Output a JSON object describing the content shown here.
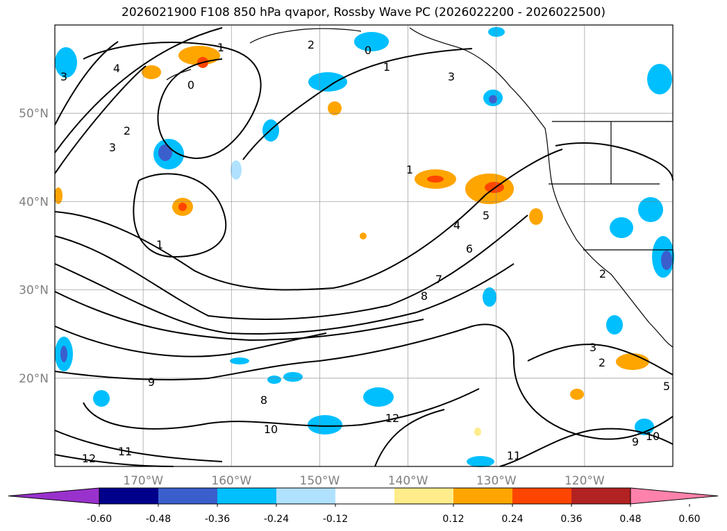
{
  "title": "2026021900 F108 850 hPa qvapor, Rossby Wave PC (2026022200 - 2026022500)",
  "map": {
    "lon_range": [
      -180,
      -110
    ],
    "lat_range": [
      10,
      60
    ],
    "lon_ticks": [
      {
        "lon": -170,
        "label": "170°W"
      },
      {
        "lon": -160,
        "label": "160°W"
      },
      {
        "lon": -150,
        "label": "150°W"
      },
      {
        "lon": -140,
        "label": "140°W"
      },
      {
        "lon": -130,
        "label": "130°W"
      },
      {
        "lon": -120,
        "label": "120°W"
      }
    ],
    "lat_ticks": [
      {
        "lat": 50,
        "label": "50°N"
      },
      {
        "lat": 40,
        "label": "40°N"
      },
      {
        "lat": 30,
        "label": "30°N"
      },
      {
        "lat": 20,
        "label": "20°N"
      }
    ],
    "grid": true,
    "contour_labels": [
      "1",
      "0",
      "4",
      "3",
      "2",
      "3",
      "1",
      "0",
      "1",
      "3",
      "2",
      "1",
      "4",
      "5",
      "6",
      "7",
      "8",
      "9",
      "8",
      "10",
      "12",
      "11",
      "12",
      "3",
      "2",
      "9",
      "10",
      "11",
      "2",
      "5"
    ]
  },
  "colorbar": {
    "ticks": [
      "-0.60",
      "-0.48",
      "-0.36",
      "-0.24",
      "-0.12",
      "0.12",
      "0.24",
      "0.36",
      "0.48",
      "0.60"
    ],
    "colors": [
      "#9932CC",
      "#00008B",
      "#3A5FCD",
      "#00BFFF",
      "#B0E2FF",
      "#FFFFFF",
      "#FFEC8B",
      "#FFA500",
      "#FF4500",
      "#B22222",
      "#FF82AB"
    ]
  }
}
